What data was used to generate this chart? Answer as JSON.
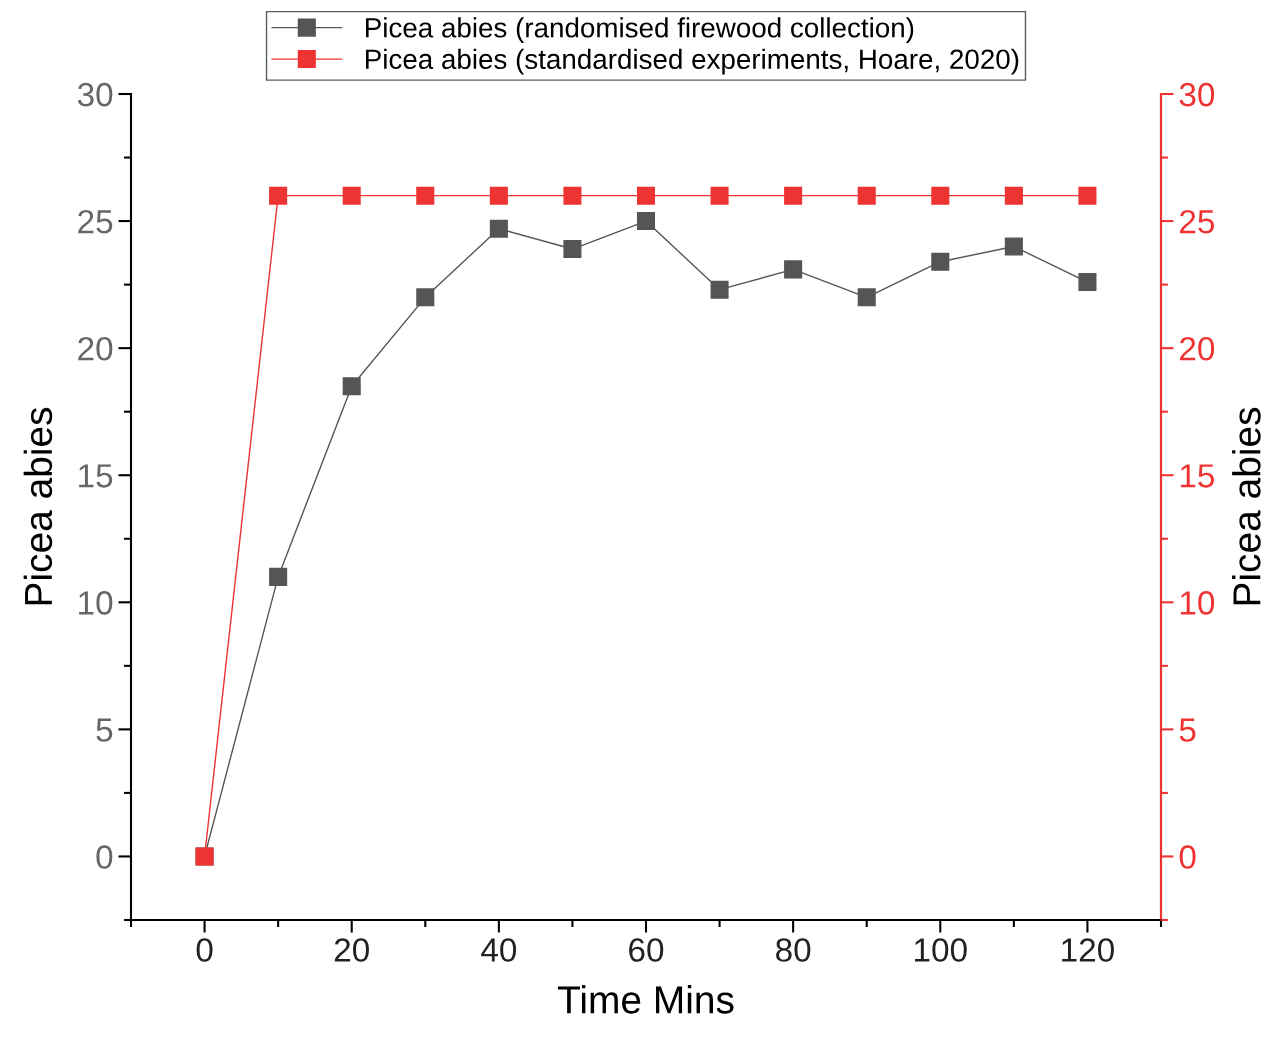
{
  "chart_data": {
    "type": "line",
    "xlabel": "Time Mins",
    "ylabel": "Picea abies",
    "y2label": "Picea abies",
    "x": [
      0,
      10,
      20,
      30,
      40,
      50,
      60,
      70,
      80,
      90,
      100,
      110,
      120
    ],
    "series": [
      {
        "name": "Picea abies (randomised firewood collection)",
        "color": "#555555",
        "values": [
          0,
          11,
          18.5,
          22,
          24.7,
          23.9,
          25,
          22.3,
          23.1,
          22,
          23.4,
          24,
          22.6
        ]
      },
      {
        "name": "Picea abies (standardised experiments, Hoare, 2020)",
        "color": "#ee3333",
        "axis": "y2",
        "values": [
          0,
          26,
          26,
          26,
          26,
          26,
          26,
          26,
          26,
          26,
          26,
          26,
          26
        ]
      }
    ],
    "xlim": [
      -10,
      130
    ],
    "xticks": [
      0,
      20,
      40,
      60,
      80,
      100,
      120
    ],
    "ylim": [
      -2.5,
      30
    ],
    "yticks": [
      0,
      5,
      10,
      15,
      20,
      25,
      30
    ],
    "y2lim": [
      -2.5,
      30
    ],
    "y2ticks": [
      0,
      5,
      10,
      15,
      20,
      25,
      30
    ],
    "marker": "square",
    "line_style": "solid",
    "grid": false,
    "legend": "top"
  }
}
